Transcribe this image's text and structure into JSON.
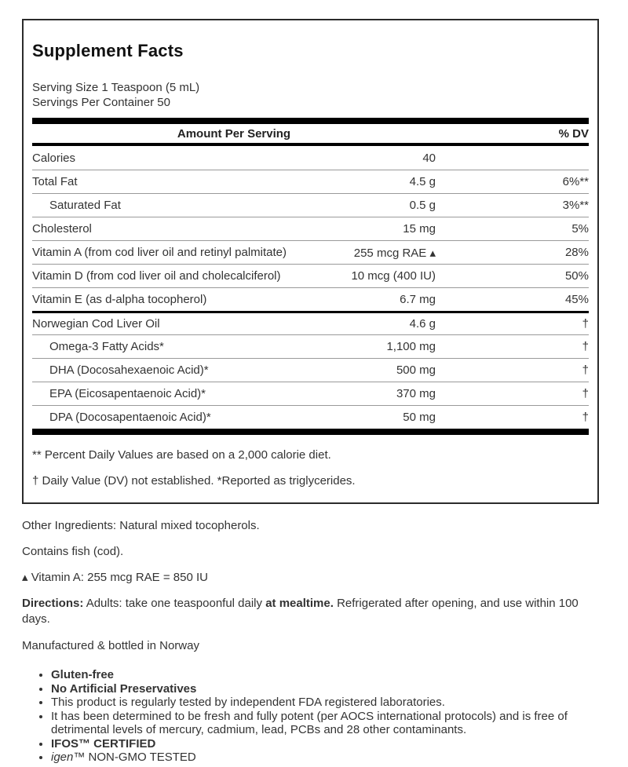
{
  "panel": {
    "title": "Supplement Facts",
    "serving_size": "Serving Size 1 Teaspoon (5 mL)",
    "servings_per_container": "Servings Per Container 50",
    "header": {
      "amount": "Amount Per Serving",
      "dv": "% DV"
    },
    "rows": [
      {
        "name": "Calories",
        "amount": "40",
        "dv": "",
        "indent": false,
        "thick_top": false
      },
      {
        "name": "Total Fat",
        "amount": "4.5 g",
        "dv": "6%**",
        "indent": false,
        "thick_top": false
      },
      {
        "name": "Saturated Fat",
        "amount": "0.5 g",
        "dv": "3%**",
        "indent": true,
        "thick_top": false
      },
      {
        "name": "Cholesterol",
        "amount": "15 mg",
        "dv": "5%",
        "indent": false,
        "thick_top": false
      },
      {
        "name": "Vitamin A (from cod liver oil and retinyl palmitate)",
        "amount": "255 mcg RAE ▴",
        "dv": "28%",
        "indent": false,
        "thick_top": false
      },
      {
        "name": "Vitamin D (from cod liver oil and cholecalciferol)",
        "amount": "10 mcg (400 IU)",
        "dv": "50%",
        "indent": false,
        "thick_top": false
      },
      {
        "name": "Vitamin E (as d-alpha tocopherol)",
        "amount": "6.7 mg",
        "dv": "45%",
        "indent": false,
        "thick_top": false
      },
      {
        "name": "Norwegian Cod Liver Oil",
        "amount": "4.6 g",
        "dv": "†",
        "indent": false,
        "thick_top": true
      },
      {
        "name": "Omega-3 Fatty Acids*",
        "amount": "1,100 mg",
        "dv": "†",
        "indent": true,
        "thick_top": false
      },
      {
        "name": "DHA (Docosahexaenoic Acid)*",
        "amount": "500 mg",
        "dv": "†",
        "indent": true,
        "thick_top": false
      },
      {
        "name": "EPA (Eicosapentaenoic Acid)*",
        "amount": "370 mg",
        "dv": "†",
        "indent": true,
        "thick_top": false
      },
      {
        "name": "DPA (Docosapentaenoic Acid)*",
        "amount": "50 mg",
        "dv": "†",
        "indent": true,
        "thick_top": false
      }
    ],
    "footnotes": [
      "** Percent Daily Values are based on a 2,000 calorie diet.",
      "† Daily Value (DV) not established. *Reported as triglycerides."
    ]
  },
  "below": {
    "other_ingredients": "Other Ingredients: Natural mixed tocopherols.",
    "contains": "Contains fish (cod).",
    "vitamin_a_note": "▴ Vitamin A: 255 mcg RAE = 850 IU",
    "directions_segments": [
      {
        "text": "Directions:",
        "bold": true
      },
      {
        "text": " Adults: take one teaspoonful daily ",
        "bold": false
      },
      {
        "text": "at mealtime.",
        "bold": true
      },
      {
        "text": " Refrigerated after opening, and use within 100 days.",
        "bold": false
      }
    ],
    "manufactured": "Manufactured & bottled in Norway",
    "bullets": [
      {
        "text": "Gluten-free",
        "bold": true,
        "italic_prefix": ""
      },
      {
        "text": "No Artificial Preservatives",
        "bold": true,
        "italic_prefix": ""
      },
      {
        "text": "This product is regularly tested by independent FDA registered laboratories.",
        "bold": false,
        "italic_prefix": ""
      },
      {
        "text": "It has been determined to be fresh and fully potent (per AOCS international protocols) and is free of detrimental levels of mercury, cadmium, lead, PCBs and 28 other contaminants.",
        "bold": false,
        "italic_prefix": ""
      },
      {
        "text": "IFOS™ CERTIFIED",
        "bold": true,
        "italic_prefix": ""
      },
      {
        "text": "™ NON-GMO TESTED",
        "bold": false,
        "italic_prefix": "igen"
      }
    ]
  }
}
